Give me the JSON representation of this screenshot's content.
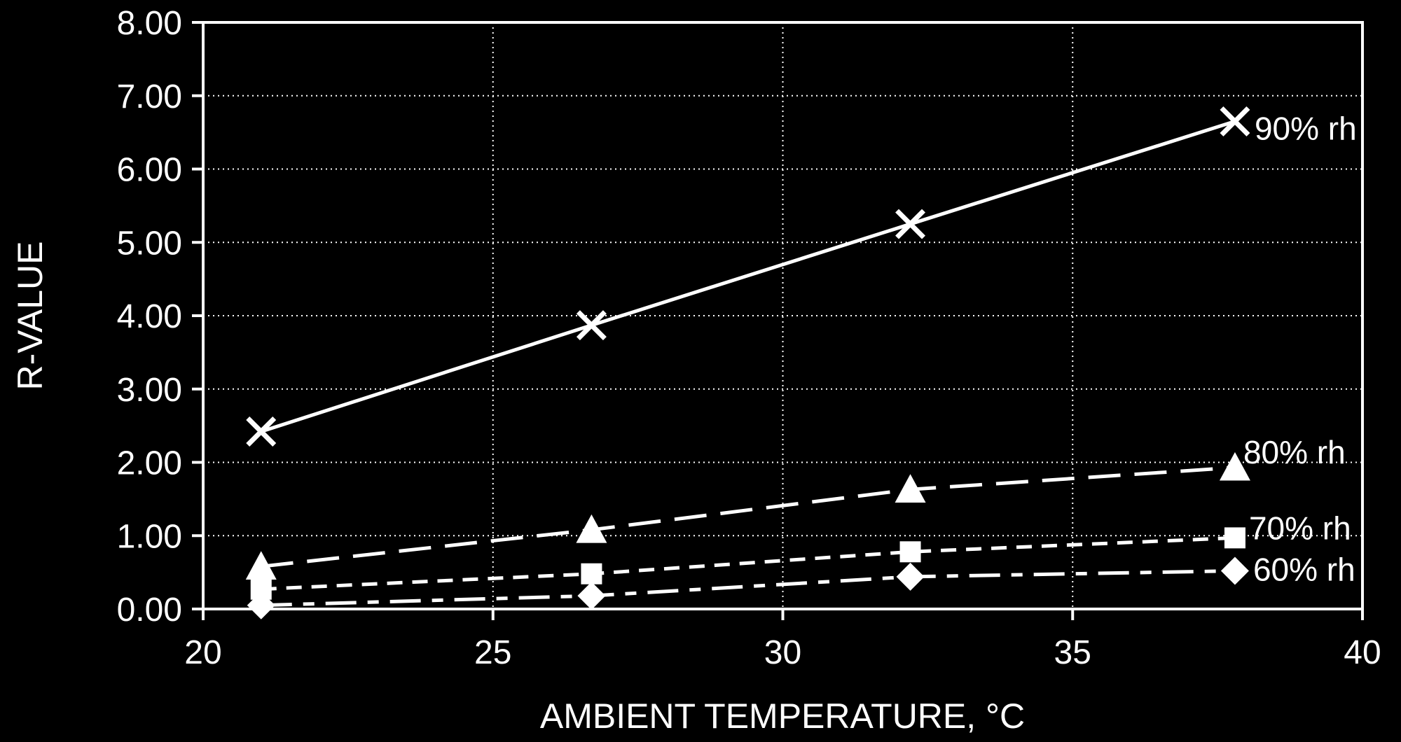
{
  "chart_data": {
    "type": "line",
    "title": "",
    "xlabel": "AMBIENT TEMPERATURE, °C",
    "ylabel": "R-VALUE",
    "xlim": [
      20,
      40
    ],
    "ylim": [
      0,
      8
    ],
    "x_ticks": [
      20,
      25,
      30,
      35,
      40
    ],
    "x_tick_labels": [
      "20",
      "25",
      "30",
      "35",
      "40"
    ],
    "y_ticks": [
      0,
      1,
      2,
      3,
      4,
      5,
      6,
      7,
      8
    ],
    "y_tick_labels": [
      "0.00",
      "1.00",
      "2.00",
      "3.00",
      "4.00",
      "5.00",
      "6.00",
      "7.00",
      "8.00"
    ],
    "grid": true,
    "grid_style": "dotted",
    "legend": "inline labels at line ends",
    "background_color": "#000000",
    "foreground_color": "#ffffff",
    "x": [
      21.0,
      26.7,
      32.2,
      37.8
    ],
    "series": [
      {
        "name": "90% rh",
        "marker": "x",
        "line_style": "solid",
        "values": [
          2.42,
          3.87,
          5.25,
          6.65
        ]
      },
      {
        "name": "80% rh",
        "marker": "triangle",
        "line_style": "long-dash",
        "values": [
          0.58,
          1.08,
          1.63,
          1.93
        ]
      },
      {
        "name": "70% rh",
        "marker": "square",
        "line_style": "short-dash",
        "values": [
          0.27,
          0.48,
          0.78,
          0.97
        ]
      },
      {
        "name": "60% rh",
        "marker": "diamond",
        "line_style": "dash-dot",
        "values": [
          0.05,
          0.18,
          0.44,
          0.52
        ]
      }
    ]
  }
}
